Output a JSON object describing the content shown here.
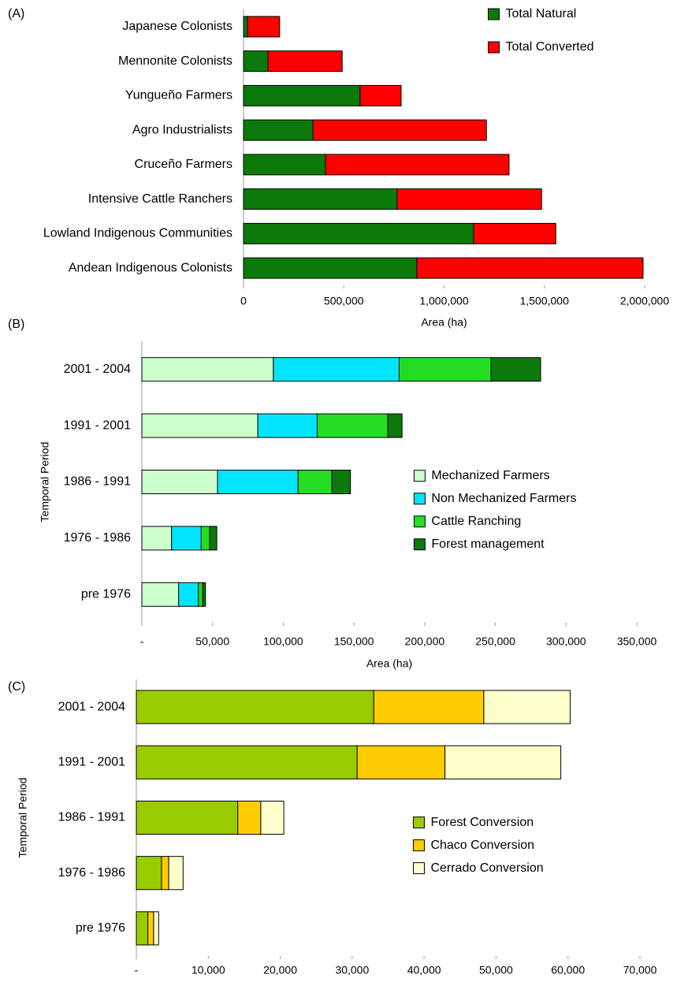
{
  "chart_data": [
    {
      "type": "bar",
      "title": "(A)",
      "xlabel": "Area (ha)",
      "legend": "upper right",
      "categories": [
        "Japanese Colonists",
        "Mennonite Colonists",
        "Yungueño Farmers",
        "Agro Industrialists",
        "Cruceño Farmers",
        "Intensive Cattle Ranchers",
        "Lowland Indigenous Communities",
        "Andean Indigenous Colonists"
      ],
      "series": [
        {
          "name": "Total Natural",
          "color": "#0b7a0b",
          "values": [
            20000,
            122000,
            581000,
            346000,
            409000,
            766000,
            1147000,
            864000
          ]
        },
        {
          "name": "Total Converted",
          "color": "#ff0000",
          "values": [
            160000,
            370000,
            205000,
            865000,
            915000,
            720000,
            410000,
            1128000
          ]
        }
      ],
      "xlim": [
        0,
        2000000
      ],
      "xticks": [
        0,
        {
          "value": 500000,
          "label": "500,000"
        },
        {
          "value": 1000000,
          "label": "1,000,000"
        },
        {
          "value": 1500000,
          "label": "1,500,000"
        },
        {
          "value": 2000000,
          "label": "2,000,000"
        }
      ]
    },
    {
      "type": "bar",
      "title": "(B)",
      "xlabel": "Area (ha)",
      "ylabel": "Temporal Period",
      "legend": "center right",
      "categories": [
        "2001 - 2004",
        "1991 - 2001",
        "1986 - 1991",
        "1976 - 1986",
        "pre 1976"
      ],
      "series": [
        {
          "name": "Mechanized Farmers",
          "color": "#ccffcc",
          "values": [
            93000,
            82000,
            53500,
            21000,
            26000
          ]
        },
        {
          "name": "Non Mechanized Farmers",
          "color": "#00e5ff",
          "values": [
            89000,
            42000,
            57000,
            21000,
            14000
          ]
        },
        {
          "name": "Cattle Ranching",
          "color": "#22dd22",
          "values": [
            65000,
            50000,
            24000,
            6000,
            3000
          ]
        },
        {
          "name": "Forest management",
          "color": "#0b7a0b",
          "values": [
            35000,
            10000,
            13000,
            5000,
            2000
          ]
        }
      ],
      "xlim": [
        0,
        350000
      ],
      "xticks": [
        {
          "value": 0,
          "label": "-"
        },
        {
          "value": 50000,
          "label": "50,000"
        },
        {
          "value": 100000,
          "label": "100,000"
        },
        {
          "value": 150000,
          "label": "150,000"
        },
        {
          "value": 200000,
          "label": "200,000"
        },
        {
          "value": 250000,
          "label": "250,000"
        },
        {
          "value": 300000,
          "label": "300,000"
        },
        {
          "value": 350000,
          "label": "350,000"
        }
      ]
    },
    {
      "type": "bar",
      "title": "(C)",
      "ylabel": "Temporal Period",
      "legend": "center right",
      "categories": [
        "2001 - 2004",
        "1991 - 2001",
        "1986 - 1991",
        "1976 - 1986",
        "pre 1976"
      ],
      "series": [
        {
          "name": "Forest Conversion",
          "color": "#99cc00",
          "values": [
            33000,
            30700,
            14100,
            3500,
            1600
          ]
        },
        {
          "name": "Chaco Conversion",
          "color": "#ffcc00",
          "values": [
            15300,
            12200,
            3200,
            1000,
            800
          ]
        },
        {
          "name": "Cerrado Conversion",
          "color": "#ffffcc",
          "values": [
            12000,
            16100,
            3200,
            2000,
            700
          ]
        }
      ],
      "xlim": [
        0,
        70000
      ],
      "xticks": [
        {
          "value": 0,
          "label": "-"
        },
        {
          "value": 10000,
          "label": "10,000"
        },
        {
          "value": 20000,
          "label": "20,000"
        },
        {
          "value": 30000,
          "label": "30,000"
        },
        {
          "value": 40000,
          "label": "40,000"
        },
        {
          "value": 50000,
          "label": "50,000"
        },
        {
          "value": 60000,
          "label": "60,000"
        },
        {
          "value": 70000,
          "label": "70,000"
        }
      ]
    }
  ]
}
